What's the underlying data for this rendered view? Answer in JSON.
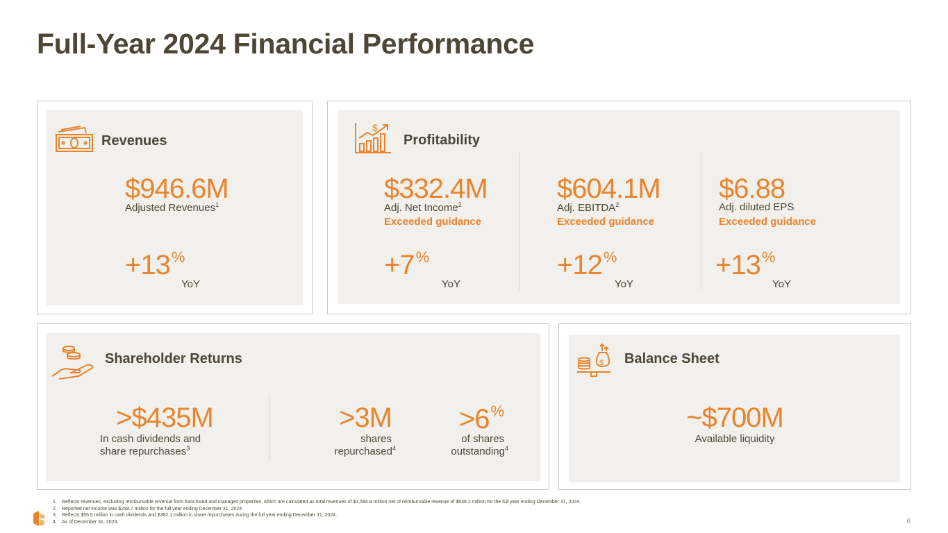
{
  "title": "Full-Year 2024 Financial Performance",
  "colors": {
    "accent": "#e8842c",
    "text": "#4d4637",
    "panel": "#f2f0ec",
    "border": "#c9c6c0"
  },
  "revenues": {
    "heading": "Revenues",
    "icon": "cash-icon",
    "value": "$946.6M",
    "label": "Adjusted Revenues",
    "label_note": "1",
    "growth": "+13",
    "growth_unit": "%",
    "growth_label": "YoY"
  },
  "profitability": {
    "heading": "Profitability",
    "icon": "growth-chart-icon",
    "metrics": [
      {
        "value": "$332.4M",
        "label": "Adj. Net Income",
        "note": "2",
        "status": "Exceeded guidance",
        "growth": "+7",
        "unit": "%",
        "growth_label": "YoY"
      },
      {
        "value": "$604.1M",
        "label": "Adj. EBITDA",
        "note": "2",
        "status": "Exceeded guidance",
        "growth": "+12",
        "unit": "%",
        "growth_label": "YoY"
      },
      {
        "value": "$6.88",
        "label": "Adj. diluted EPS",
        "note": "",
        "status": "Exceeded guidance",
        "growth": "+13",
        "unit": "%",
        "growth_label": "YoY"
      }
    ]
  },
  "shareholder_returns": {
    "heading": "Shareholder Returns",
    "icon": "hand-coins-icon",
    "total_value": ">$435M",
    "total_label_1": "In cash dividends and",
    "total_label_2": "share repurchases",
    "total_note": "3",
    "shares_value": ">3M",
    "shares_label_1": "shares",
    "shares_label_2": "repurchased",
    "shares_note": "4",
    "pct_value": ">6",
    "pct_unit": "%",
    "pct_label_1": "of shares",
    "pct_label_2": "outstanding",
    "pct_note": "4"
  },
  "balance_sheet": {
    "heading": "Balance Sheet",
    "icon": "money-bag-scale-icon",
    "value": "~$700M",
    "label": "Available liquidity"
  },
  "footnotes": [
    {
      "num": "1.",
      "text": "Reflects revenues, excluding reimbursable revenue from franchised and managed properties, which are calculated as total revenues of $1,584.8 million net of reimbursable revenue of $638.2 million for the full year ending December 31, 2024."
    },
    {
      "num": "2.",
      "text": "Reported net income was $299.7 million for the full year ending December 31, 2024."
    },
    {
      "num": "3.",
      "text": "Reflects $55.5 million in cash dividends and $382.1 million in share repurchases during the full year ending December 31, 2024."
    },
    {
      "num": "4.",
      "text": "As of December 31, 2023."
    }
  ],
  "page_number": "6"
}
